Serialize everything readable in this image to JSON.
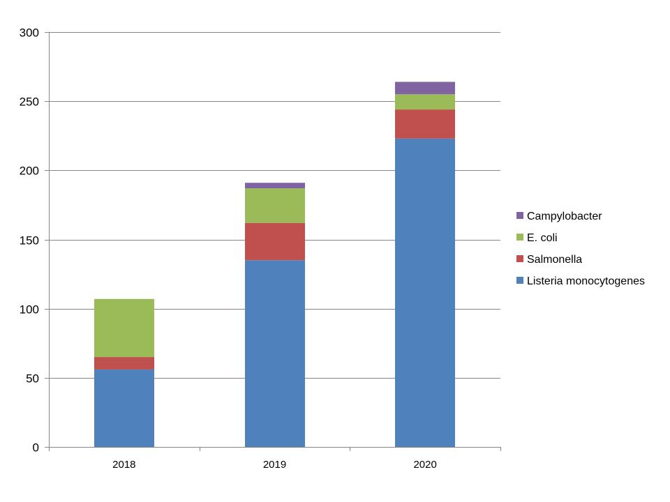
{
  "chart_data": {
    "type": "bar",
    "stacked": true,
    "title": "",
    "xlabel": "",
    "ylabel": "",
    "categories": [
      "2018",
      "2019",
      "2020"
    ],
    "ylim": [
      0,
      300
    ],
    "yticks": [
      0,
      50,
      100,
      150,
      200,
      250,
      300
    ],
    "grid": true,
    "legend_position": "right",
    "series": [
      {
        "name": "Listeria monocytogenes",
        "color": "#4F81BD",
        "values": [
          56,
          135,
          223
        ]
      },
      {
        "name": "Salmonella",
        "color": "#C0504D",
        "values": [
          9,
          27,
          21
        ]
      },
      {
        "name": "E. coli",
        "color": "#9BBB59",
        "values": [
          42,
          25,
          11
        ]
      },
      {
        "name": "Campylobacter",
        "color": "#8064A2",
        "values": [
          0,
          4,
          9
        ]
      }
    ]
  }
}
